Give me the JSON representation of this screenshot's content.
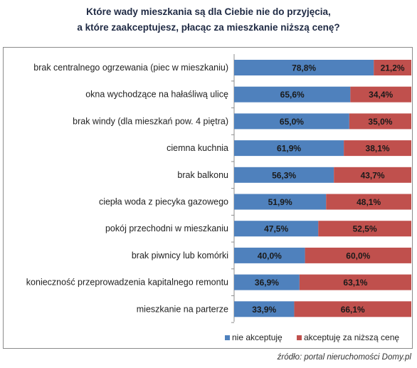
{
  "title_line1": "Które wady mieszkania są dla Ciebie nie do przyjęcia,",
  "title_line2": "a które zaakceptujesz, płacąc za mieszkanie niższą cenę?",
  "source": "źródło: portal nieruchomości Domy.pl",
  "colors": {
    "series1": "#4f81bd",
    "series2": "#c0504d"
  },
  "chart_data": {
    "type": "bar",
    "orientation": "horizontal",
    "stacked": "percent",
    "categories": [
      "brak centralnego ogrzewania (piec w mieszkaniu)",
      "okna wychodzące na hałaśliwą ulicę",
      "brak windy (dla mieszkań pow. 4 piętra)",
      "ciemna kuchnia",
      "brak balkonu",
      "ciepła woda z piecyka gazowego",
      "pokój przechodni w mieszkaniu",
      "brak piwnicy lub komórki",
      "konieczność przeprowadzenia kapitalnego remontu",
      "mieszkanie na parterze"
    ],
    "series": [
      {
        "name": "nie akceptuję",
        "values": [
          78.8,
          65.6,
          65.0,
          61.9,
          56.3,
          51.9,
          47.5,
          40.0,
          36.9,
          33.9
        ],
        "labels": [
          "78,8%",
          "65,6%",
          "65,0%",
          "61,9%",
          "56,3%",
          "51,9%",
          "47,5%",
          "40,0%",
          "36,9%",
          "33,9%"
        ]
      },
      {
        "name": "akceptuję za niższą cenę",
        "values": [
          21.2,
          34.4,
          35.0,
          38.1,
          43.7,
          48.1,
          52.5,
          60.0,
          63.1,
          66.1
        ],
        "labels": [
          "21,2%",
          "34,4%",
          "35,0%",
          "38,1%",
          "43,7%",
          "48,1%",
          "52,5%",
          "60,0%",
          "63,1%",
          "66,1%"
        ]
      }
    ],
    "xlim": [
      0,
      100
    ],
    "grid": false,
    "legend_position": "bottom-right"
  }
}
